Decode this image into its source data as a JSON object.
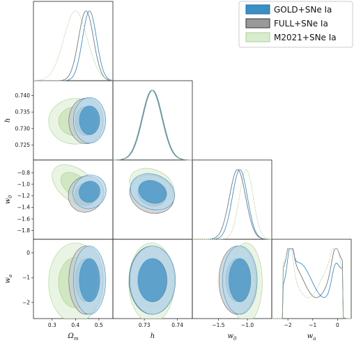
{
  "chart_data": {
    "type": "corner-plot",
    "parameters": [
      {
        "symbol": "Ω",
        "sub": "m",
        "ticks": [
          "0.3",
          "0.4",
          "0.5"
        ],
        "range": [
          0.22,
          0.56
        ]
      },
      {
        "symbol": "h",
        "sub": "",
        "ticks": [
          "0.73",
          "0.74"
        ],
        "range": [
          0.7205,
          0.7445
        ]
      },
      {
        "symbol": "w",
        "sub": "0",
        "ticks": [
          "−1.5",
          "−1.0"
        ],
        "range": [
          -1.95,
          -0.58
        ]
      },
      {
        "symbol": "w",
        "sub": "a",
        "ticks": [
          "−2",
          "−1",
          "0"
        ],
        "range": [
          -2.65,
          0.55
        ]
      }
    ],
    "y_ticks": {
      "h": [
        "0.725",
        "0.730",
        "0.735",
        "0.740"
      ],
      "w0": [
        "−0.8",
        "−1.0",
        "−1.2",
        "−1.4",
        "−1.6",
        "−1.8"
      ],
      "wa": [
        "0",
        "−1",
        "−2"
      ]
    },
    "series": [
      {
        "name": "GOLD+SNe Ia",
        "color": "#3a8fc4",
        "style": "solid",
        "means": [
          0.46,
          0.7325,
          -1.13,
          -1.1
        ],
        "sigmas": [
          0.03,
          0.003,
          0.13,
          0.6
        ]
      },
      {
        "name": "FULL+SNe Ia",
        "color": "#7f7f7f",
        "style": "solid",
        "means": [
          0.445,
          0.7323,
          -1.17,
          -1.1
        ],
        "sigmas": [
          0.032,
          0.003,
          0.14,
          0.6
        ]
      },
      {
        "name": "M2021+SNe Ia",
        "color": "#a8d08d",
        "style": "dotted",
        "means": [
          0.4,
          0.7322,
          -1.02,
          -1.2
        ],
        "sigmas": [
          0.05,
          0.003,
          0.12,
          0.7
        ]
      }
    ]
  }
}
